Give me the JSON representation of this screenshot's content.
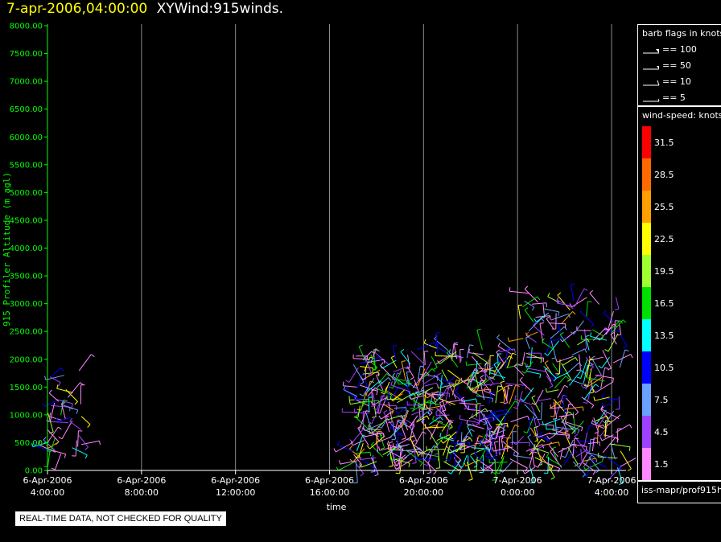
{
  "header": {
    "time": "7-apr-2006,04:00:00",
    "name": "XYWind:915winds."
  },
  "legend": {
    "barb_title": "barb flags in knots",
    "barbs": [
      {
        "label": "== 100",
        "kind": "flag"
      },
      {
        "label": "== 50",
        "kind": "flag-small"
      },
      {
        "label": "== 10",
        "kind": "full"
      },
      {
        "label": "== 5",
        "kind": "half"
      }
    ],
    "speed_title": "wind-speed: knots",
    "colorbar": [
      {
        "label": "31.5",
        "color": "#ff0000"
      },
      {
        "label": "28.5",
        "color": "#ff6a00"
      },
      {
        "label": "25.5",
        "color": "#ffa000"
      },
      {
        "label": "22.5",
        "color": "#ffff00"
      },
      {
        "label": "19.5",
        "color": "#a0ff30"
      },
      {
        "label": "16.5",
        "color": "#00e000"
      },
      {
        "label": "13.5",
        "color": "#00ffff"
      },
      {
        "label": "10.5",
        "color": "#0000ff"
      },
      {
        "label": "7.5",
        "color": "#6aa0ff"
      },
      {
        "label": "4.5",
        "color": "#a040ff"
      },
      {
        "label": "1.5",
        "color": "#ff88ff"
      }
    ],
    "source": "iss-mapr/prof915h"
  },
  "notice": "REAL-TIME DATA, NOT CHECKED FOR QUALITY",
  "chart_data": {
    "type": "scatter",
    "title": "",
    "xlabel": "time",
    "ylabel": "915 Profiler Altitude (m agl)",
    "x_ticks": [
      {
        "line1": "6-Apr-2006",
        "line2": "4:00:00",
        "hours": 0
      },
      {
        "line1": "6-Apr-2006",
        "line2": "8:00:00",
        "hours": 4
      },
      {
        "line1": "6-Apr-2006",
        "line2": "12:00:00",
        "hours": 8
      },
      {
        "line1": "6-Apr-2006",
        "line2": "16:00:00",
        "hours": 12
      },
      {
        "line1": "6-Apr-2006",
        "line2": "20:00:00",
        "hours": 16
      },
      {
        "line1": "7-Apr-2006",
        "line2": "0:00:00",
        "hours": 20
      },
      {
        "line1": "7-Apr-2006",
        "line2": "4:00:00",
        "hours": 24
      }
    ],
    "y_ticks": [
      "0.00",
      "500.00",
      "1000.00",
      "1500.00",
      "2000.00",
      "2500.00",
      "3000.00",
      "3500.00",
      "4000.00",
      "4500.00",
      "5000.00",
      "5500.00",
      "6000.00",
      "6500.00",
      "7000.00",
      "7500.00",
      "8000.00"
    ],
    "xlim_hours": [
      0,
      24
    ],
    "ylim": [
      0,
      8000
    ],
    "grid": "vertical",
    "clusters": [
      {
        "start_hours": 0.0,
        "end_hours": 1.5,
        "alt_min": 300,
        "alt_max": 1800,
        "count": 40
      },
      {
        "start_hours": 13.0,
        "end_hours": 19.8,
        "alt_min": 150,
        "alt_max": 2200,
        "count": 420
      },
      {
        "start_hours": 20.1,
        "end_hours": 24.4,
        "alt_min": 50,
        "alt_max": 3200,
        "count": 240
      }
    ]
  }
}
